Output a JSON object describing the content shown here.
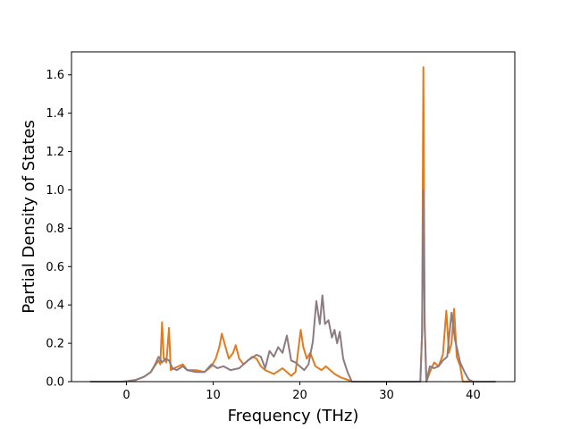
{
  "chart_data": {
    "type": "line",
    "title": "",
    "xlabel": "Frequency (THz)",
    "ylabel": "Partial Density of States",
    "xlim": [
      -6.35,
      44.8
    ],
    "ylim": [
      0,
      1.72
    ],
    "xticks": [
      0,
      10,
      20,
      30,
      40
    ],
    "yticks": [
      0.0,
      0.2,
      0.4,
      0.6,
      0.8,
      1.0,
      1.2,
      1.4,
      1.6
    ],
    "xtick_labels": [
      "0",
      "10",
      "20",
      "30",
      "40"
    ],
    "ytick_labels": [
      "0.0",
      "0.2",
      "0.4",
      "0.6",
      "0.8",
      "1.0",
      "1.2",
      "1.4",
      "1.6"
    ],
    "grid": false,
    "legend": "none",
    "series": [
      {
        "color": "#e07b20",
        "points": [
          [
            -4.2,
            0
          ],
          [
            -0.5,
            0
          ],
          [
            0,
            0.002
          ],
          [
            1,
            0.008
          ],
          [
            2,
            0.025
          ],
          [
            2.8,
            0.05
          ],
          [
            3.3,
            0.085
          ],
          [
            3.7,
            0.11
          ],
          [
            3.9,
            0.09
          ],
          [
            4.1,
            0.31
          ],
          [
            4.3,
            0.12
          ],
          [
            4.6,
            0.1
          ],
          [
            4.9,
            0.28
          ],
          [
            5.1,
            0.06
          ],
          [
            5.5,
            0.07
          ],
          [
            6.0,
            0.08
          ],
          [
            6.5,
            0.09
          ],
          [
            7.0,
            0.06
          ],
          [
            8.0,
            0.06
          ],
          [
            9.0,
            0.05
          ],
          [
            9.8,
            0.08
          ],
          [
            10.3,
            0.12
          ],
          [
            10.7,
            0.18
          ],
          [
            11.0,
            0.25
          ],
          [
            11.3,
            0.2
          ],
          [
            11.8,
            0.12
          ],
          [
            12.3,
            0.15
          ],
          [
            12.6,
            0.19
          ],
          [
            13.0,
            0.12
          ],
          [
            13.5,
            0.09
          ],
          [
            14.0,
            0.11
          ],
          [
            14.5,
            0.13
          ],
          [
            15.0,
            0.12
          ],
          [
            15.5,
            0.08
          ],
          [
            16.0,
            0.06
          ],
          [
            17.0,
            0.04
          ],
          [
            18.0,
            0.07
          ],
          [
            19.0,
            0.03
          ],
          [
            19.5,
            0.05
          ],
          [
            19.8,
            0.16
          ],
          [
            20.1,
            0.27
          ],
          [
            20.4,
            0.18
          ],
          [
            20.8,
            0.12
          ],
          [
            21.2,
            0.15
          ],
          [
            21.8,
            0.08
          ],
          [
            22.5,
            0.06
          ],
          [
            23.0,
            0.08
          ],
          [
            24.0,
            0.04
          ],
          [
            24.8,
            0.02
          ],
          [
            25.5,
            0.01
          ],
          [
            26.0,
            0
          ],
          [
            33.9,
            0
          ],
          [
            34.1,
            0.25
          ],
          [
            34.25,
            1.64
          ],
          [
            34.4,
            0.3
          ],
          [
            34.6,
            0
          ],
          [
            35.0,
            0.05
          ],
          [
            35.5,
            0.1
          ],
          [
            36.0,
            0.08
          ],
          [
            36.5,
            0.14
          ],
          [
            36.9,
            0.37
          ],
          [
            37.2,
            0.15
          ],
          [
            37.5,
            0.2
          ],
          [
            37.8,
            0.38
          ],
          [
            38.1,
            0.13
          ],
          [
            38.5,
            0.08
          ],
          [
            38.8,
            0
          ],
          [
            42.6,
            0
          ]
        ]
      },
      {
        "color": "#8c7b80",
        "points": [
          [
            -4.2,
            0
          ],
          [
            -0.5,
            0
          ],
          [
            0,
            0.002
          ],
          [
            1,
            0.008
          ],
          [
            2,
            0.025
          ],
          [
            2.8,
            0.05
          ],
          [
            3.3,
            0.09
          ],
          [
            3.7,
            0.13
          ],
          [
            4.1,
            0.1
          ],
          [
            4.5,
            0.12
          ],
          [
            4.9,
            0.11
          ],
          [
            5.3,
            0.07
          ],
          [
            5.8,
            0.06
          ],
          [
            6.5,
            0.08
          ],
          [
            7.0,
            0.06
          ],
          [
            8.0,
            0.05
          ],
          [
            9.0,
            0.05
          ],
          [
            9.8,
            0.09
          ],
          [
            10.5,
            0.07
          ],
          [
            11.2,
            0.08
          ],
          [
            12.0,
            0.06
          ],
          [
            13.0,
            0.07
          ],
          [
            14.0,
            0.11
          ],
          [
            15.0,
            0.14
          ],
          [
            15.5,
            0.13
          ],
          [
            16.0,
            0.07
          ],
          [
            16.5,
            0.16
          ],
          [
            17.0,
            0.13
          ],
          [
            17.5,
            0.18
          ],
          [
            18.0,
            0.15
          ],
          [
            18.5,
            0.24
          ],
          [
            19.0,
            0.11
          ],
          [
            19.5,
            0.1
          ],
          [
            20.0,
            0.08
          ],
          [
            20.5,
            0.06
          ],
          [
            21.0,
            0.09
          ],
          [
            21.5,
            0.21
          ],
          [
            21.9,
            0.42
          ],
          [
            22.3,
            0.3
          ],
          [
            22.6,
            0.45
          ],
          [
            22.9,
            0.3
          ],
          [
            23.3,
            0.32
          ],
          [
            23.7,
            0.23
          ],
          [
            24.0,
            0.27
          ],
          [
            24.3,
            0.2
          ],
          [
            24.6,
            0.26
          ],
          [
            25.0,
            0.12
          ],
          [
            25.5,
            0.05
          ],
          [
            26.0,
            0
          ],
          [
            33.9,
            0
          ],
          [
            34.1,
            0.25
          ],
          [
            34.25,
            1.0
          ],
          [
            34.4,
            0.3
          ],
          [
            34.6,
            0
          ],
          [
            35.0,
            0.08
          ],
          [
            35.5,
            0.07
          ],
          [
            36.0,
            0.08
          ],
          [
            36.5,
            0.11
          ],
          [
            37.0,
            0.13
          ],
          [
            37.5,
            0.36
          ],
          [
            37.9,
            0.22
          ],
          [
            38.5,
            0.1
          ],
          [
            39.0,
            0.05
          ],
          [
            39.5,
            0.01
          ],
          [
            40.0,
            0
          ],
          [
            42.6,
            0
          ]
        ]
      }
    ]
  }
}
